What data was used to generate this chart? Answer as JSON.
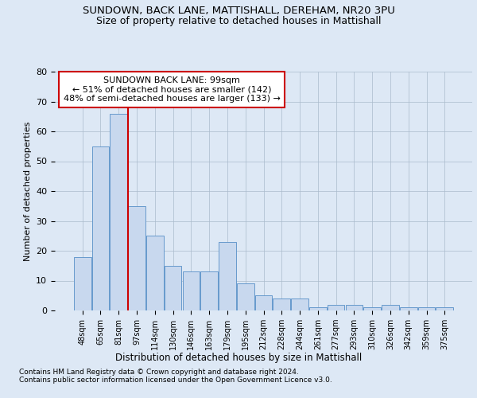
{
  "title1": "SUNDOWN, BACK LANE, MATTISHALL, DEREHAM, NR20 3PU",
  "title2": "Size of property relative to detached houses in Mattishall",
  "xlabel": "Distribution of detached houses by size in Mattishall",
  "ylabel": "Number of detached properties",
  "categories": [
    "48sqm",
    "65sqm",
    "81sqm",
    "97sqm",
    "114sqm",
    "130sqm",
    "146sqm",
    "163sqm",
    "179sqm",
    "195sqm",
    "212sqm",
    "228sqm",
    "244sqm",
    "261sqm",
    "277sqm",
    "293sqm",
    "310sqm",
    "326sqm",
    "342sqm",
    "359sqm",
    "375sqm"
  ],
  "values": [
    18,
    55,
    66,
    35,
    25,
    15,
    13,
    13,
    23,
    9,
    5,
    4,
    4,
    1,
    2,
    2,
    1,
    2,
    1,
    1,
    1
  ],
  "bar_color": "#c8d8ee",
  "bar_edge_color": "#6699cc",
  "vline_x_index": 2.5,
  "vline_color": "#cc0000",
  "annotation_text": "SUNDOWN BACK LANE: 99sqm\n← 51% of detached houses are smaller (142)\n48% of semi-detached houses are larger (133) →",
  "annotation_box_color": "#ffffff",
  "annotation_box_edge": "#cc0000",
  "footnote1": "Contains HM Land Registry data © Crown copyright and database right 2024.",
  "footnote2": "Contains public sector information licensed under the Open Government Licence v3.0.",
  "ylim": [
    0,
    80
  ],
  "yticks": [
    0,
    10,
    20,
    30,
    40,
    50,
    60,
    70,
    80
  ],
  "title1_fontsize": 9.5,
  "title2_fontsize": 9,
  "background_color": "#dde8f5"
}
